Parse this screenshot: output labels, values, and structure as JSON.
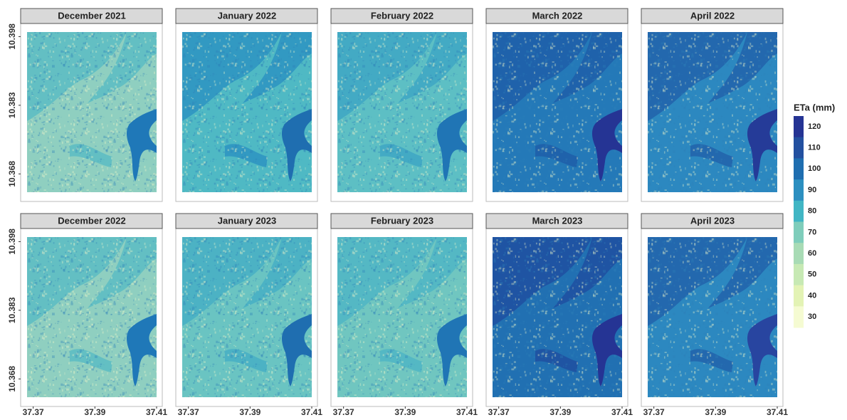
{
  "panels": [
    {
      "title": "December 2021"
    },
    {
      "title": "January 2022"
    },
    {
      "title": "February 2022"
    },
    {
      "title": "March 2022"
    },
    {
      "title": "April 2022"
    },
    {
      "title": "December 2022"
    },
    {
      "title": "January 2023"
    },
    {
      "title": "February 2023"
    },
    {
      "title": "March 2023"
    },
    {
      "title": "April 2023"
    }
  ],
  "y_axis": {
    "ylim": [
      10.364,
      10.399
    ],
    "ticks": [
      10.398,
      10.383,
      10.368
    ]
  },
  "x_axis": {
    "xlim": [
      37.368,
      37.41
    ],
    "ticks": [
      37.37,
      37.39,
      37.41
    ]
  },
  "legend": {
    "title": "ETa (mm)",
    "ticks": [
      120,
      110,
      100,
      90,
      80,
      70,
      60,
      50,
      40,
      30
    ],
    "colors": [
      "#253494",
      "#2350a0",
      "#1f6eb0",
      "#2c8fc0",
      "#41b6c4",
      "#7fcdbb",
      "#a8dbb5",
      "#c7e9b4",
      "#e3f3b5",
      "#f5fbd2"
    ]
  }
}
